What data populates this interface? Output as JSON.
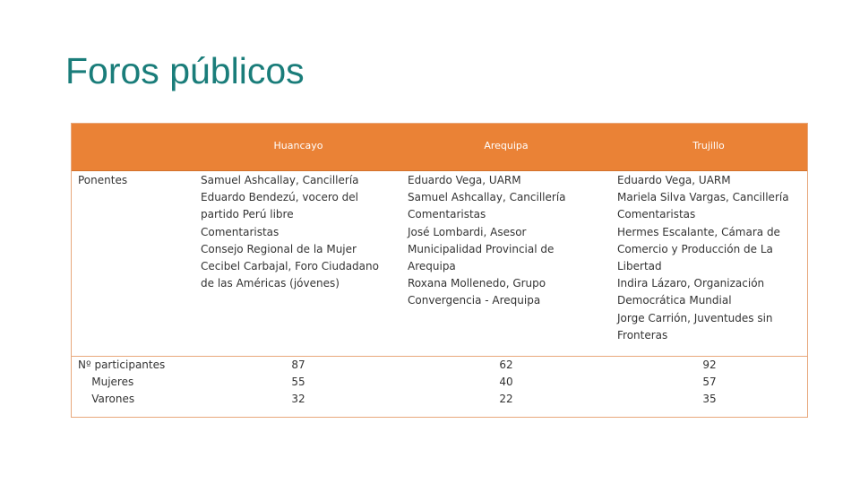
{
  "title": "Foros públicos",
  "table": {
    "headers": [
      "",
      "Huancayo",
      "Arequipa",
      "Trujillo"
    ],
    "rows": [
      {
        "label": "Ponentes",
        "cells": [
          "Samuel Ashcallay, Cancillería\nEduardo Bendezú, vocero del\npartido Perú libre\nComentaristas\nConsejo Regional de la Mujer\nCecibel Carbajal, Foro Ciudadano\nde las Américas (jóvenes)",
          "Eduardo Vega, UARM\nSamuel Ashcallay, Cancillería\nComentaristas\nJosé Lombardi, Asesor\nMunicipalidad Provincial de\nArequipa\nRoxana Mollenedo, Grupo\nConvergencia - Arequipa",
          "Eduardo Vega, UARM\nMariela Silva Vargas, Cancillería\nComentaristas\nHermes Escalante, Cámara de\nComercio y Producción de La\nLibertad\nIndira Lázaro, Organización\nDemocrática Mundial\nJorge Carrión, Juventudes sin\nFronteras"
        ]
      },
      {
        "label": "Nº participantes\n    Mujeres\n    Varones",
        "cells": [
          "87\n55\n32",
          "62\n40\n22",
          "92\n57\n35"
        ]
      }
    ]
  }
}
